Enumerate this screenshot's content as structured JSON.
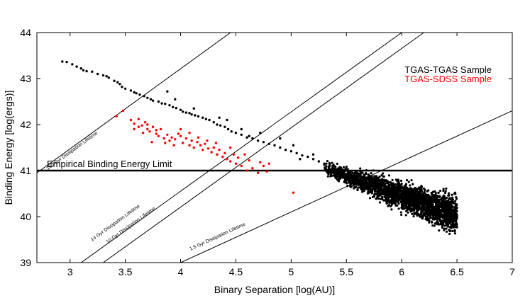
{
  "chart_data": {
    "type": "scatter",
    "xlabel": "Binary Separation [log(AU)]",
    "ylabel": "Binding Energy [log(ergs)]",
    "xlim": [
      2.7,
      7
    ],
    "ylim": [
      39,
      44
    ],
    "xticks": [
      "3",
      "3.5",
      "4",
      "4.5",
      "5",
      "5.5",
      "6",
      "6.5",
      "7"
    ],
    "yticks": [
      "39",
      "40",
      "41",
      "42",
      "43",
      "44"
    ],
    "legend": [
      {
        "label": "TGAS-TGAS Sample",
        "color": "#000000"
      },
      {
        "label": "TGAS-SDSS Sample",
        "color": "#ff0000"
      }
    ],
    "legend_position": "top-right",
    "hline": {
      "y": 41,
      "label": "Empirical Binding Energy Limit"
    },
    "lifetime_lines": [
      {
        "label": "100 Gyr Dissipation Lifetime",
        "x": [
          2.7,
          5.6
        ],
        "y": [
          40.95,
          46.0
        ]
      },
      {
        "label": "14 Gyr Dissipation Lifetime",
        "x": [
          3.1,
          6.0
        ],
        "y": [
          39.0,
          44.0
        ]
      },
      {
        "label": "10 Gyr Dissipation Lifetime",
        "x": [
          3.3,
          6.2
        ],
        "y": [
          39.0,
          44.0
        ]
      },
      {
        "label": "1.5 Gyr Dissipation Lifetime",
        "x": [
          4.0,
          7.0
        ],
        "y": [
          39.0,
          42.3
        ]
      }
    ],
    "series": [
      {
        "name": "TGAS-TGAS Sample",
        "color": "#000000",
        "points": [
          [
            2.93,
            43.37
          ],
          [
            2.97,
            43.36
          ],
          [
            3.02,
            43.31
          ],
          [
            3.06,
            43.26
          ],
          [
            3.1,
            43.22
          ],
          [
            3.12,
            43.18
          ],
          [
            3.15,
            43.16
          ],
          [
            3.2,
            43.15
          ],
          [
            3.25,
            43.1
          ],
          [
            3.3,
            43.07
          ],
          [
            3.33,
            43.05
          ],
          [
            3.35,
            43.02
          ],
          [
            3.4,
            42.95
          ],
          [
            3.43,
            42.92
          ],
          [
            3.45,
            42.88
          ],
          [
            3.47,
            42.82
          ],
          [
            3.5,
            42.78
          ],
          [
            3.55,
            42.74
          ],
          [
            3.58,
            42.7
          ],
          [
            3.6,
            42.68
          ],
          [
            3.63,
            42.65
          ],
          [
            3.67,
            42.62
          ],
          [
            3.7,
            42.58
          ],
          [
            3.73,
            42.55
          ],
          [
            3.75,
            42.52
          ],
          [
            3.8,
            42.5
          ],
          [
            3.83,
            42.46
          ],
          [
            3.86,
            42.45
          ],
          [
            3.9,
            42.42
          ],
          [
            3.93,
            42.38
          ],
          [
            3.96,
            42.36
          ],
          [
            4.0,
            42.32
          ],
          [
            4.02,
            42.28
          ],
          [
            4.05,
            42.26
          ],
          [
            4.08,
            42.25
          ],
          [
            4.1,
            42.22
          ],
          [
            4.13,
            42.2
          ],
          [
            4.16,
            42.18
          ],
          [
            4.2,
            42.15
          ],
          [
            4.23,
            42.12
          ],
          [
            4.26,
            42.1
          ],
          [
            4.3,
            42.05
          ],
          [
            4.33,
            42.0
          ],
          [
            4.36,
            41.98
          ],
          [
            4.4,
            41.95
          ],
          [
            4.43,
            41.9
          ],
          [
            4.46,
            41.85
          ],
          [
            4.5,
            41.82
          ],
          [
            4.55,
            41.78
          ],
          [
            4.6,
            41.72
          ],
          [
            4.65,
            41.7
          ],
          [
            4.7,
            41.65
          ],
          [
            4.75,
            41.62
          ],
          [
            4.8,
            41.58
          ],
          [
            4.85,
            41.55
          ],
          [
            4.9,
            41.5
          ],
          [
            4.95,
            41.45
          ],
          [
            5.0,
            41.42
          ],
          [
            5.05,
            41.38
          ],
          [
            5.1,
            41.33
          ],
          [
            5.15,
            41.3
          ],
          [
            5.2,
            41.25
          ],
          [
            5.25,
            41.2
          ],
          [
            5.3,
            41.15
          ],
          [
            3.95,
            42.55
          ],
          [
            4.12,
            42.35
          ],
          [
            4.35,
            42.15
          ],
          [
            4.55,
            41.9
          ],
          [
            4.72,
            41.82
          ],
          [
            4.9,
            41.7
          ],
          [
            5.02,
            41.55
          ],
          [
            5.2,
            41.35
          ],
          [
            3.88,
            42.72
          ],
          [
            4.42,
            42.1
          ],
          [
            4.62,
            41.75
          ],
          [
            5.08,
            41.25
          ],
          [
            5.35,
            41.12
          ],
          [
            5.38,
            41.05
          ],
          [
            5.4,
            41.08
          ]
        ],
        "cloud": {
          "x_range": [
            5.3,
            6.5
          ],
          "y_range": [
            39.3,
            41.2
          ],
          "count": 2600,
          "seed": 7
        }
      },
      {
        "name": "TGAS-SDSS Sample",
        "color": "#ff0000",
        "points": [
          [
            3.42,
            42.18
          ],
          [
            3.48,
            42.3
          ],
          [
            3.55,
            42.1
          ],
          [
            3.58,
            42.02
          ],
          [
            3.62,
            41.95
          ],
          [
            3.65,
            41.98
          ],
          [
            3.68,
            42.05
          ],
          [
            3.7,
            41.9
          ],
          [
            3.72,
            41.85
          ],
          [
            3.75,
            41.95
          ],
          [
            3.78,
            41.8
          ],
          [
            3.8,
            41.75
          ],
          [
            3.82,
            41.9
          ],
          [
            3.85,
            41.7
          ],
          [
            3.88,
            41.78
          ],
          [
            3.9,
            41.65
          ],
          [
            3.92,
            41.72
          ],
          [
            3.95,
            41.68
          ],
          [
            3.98,
            41.8
          ],
          [
            4.0,
            41.75
          ],
          [
            4.02,
            41.6
          ],
          [
            4.05,
            41.7
          ],
          [
            4.08,
            41.55
          ],
          [
            4.1,
            41.65
          ],
          [
            4.12,
            41.5
          ],
          [
            4.15,
            41.62
          ],
          [
            4.18,
            41.55
          ],
          [
            4.2,
            41.45
          ],
          [
            4.22,
            41.58
          ],
          [
            4.25,
            41.48
          ],
          [
            4.28,
            41.4
          ],
          [
            4.3,
            41.5
          ],
          [
            4.33,
            41.35
          ],
          [
            4.35,
            41.45
          ],
          [
            4.38,
            41.3
          ],
          [
            4.4,
            41.38
          ],
          [
            4.42,
            41.25
          ],
          [
            4.45,
            41.2
          ],
          [
            4.48,
            41.35
          ],
          [
            4.5,
            41.15
          ],
          [
            4.52,
            41.28
          ],
          [
            4.55,
            41.1
          ],
          [
            4.6,
            41.0
          ],
          [
            4.62,
            41.22
          ],
          [
            4.65,
            41.05
          ],
          [
            4.7,
            40.95
          ],
          [
            4.72,
            41.18
          ],
          [
            4.75,
            41.1
          ],
          [
            4.78,
            40.98
          ],
          [
            4.8,
            41.15
          ],
          [
            3.62,
            42.12
          ],
          [
            3.7,
            42.0
          ],
          [
            3.78,
            41.88
          ],
          [
            3.86,
            41.6
          ],
          [
            3.94,
            41.55
          ],
          [
            4.0,
            41.9
          ],
          [
            4.08,
            41.82
          ],
          [
            4.16,
            41.72
          ],
          [
            4.24,
            41.65
          ],
          [
            4.32,
            41.6
          ],
          [
            4.45,
            41.5
          ],
          [
            4.58,
            41.35
          ],
          [
            3.58,
            41.9
          ],
          [
            3.66,
            41.82
          ],
          [
            3.74,
            41.62
          ],
          [
            5.02,
            40.52
          ]
        ]
      }
    ]
  }
}
